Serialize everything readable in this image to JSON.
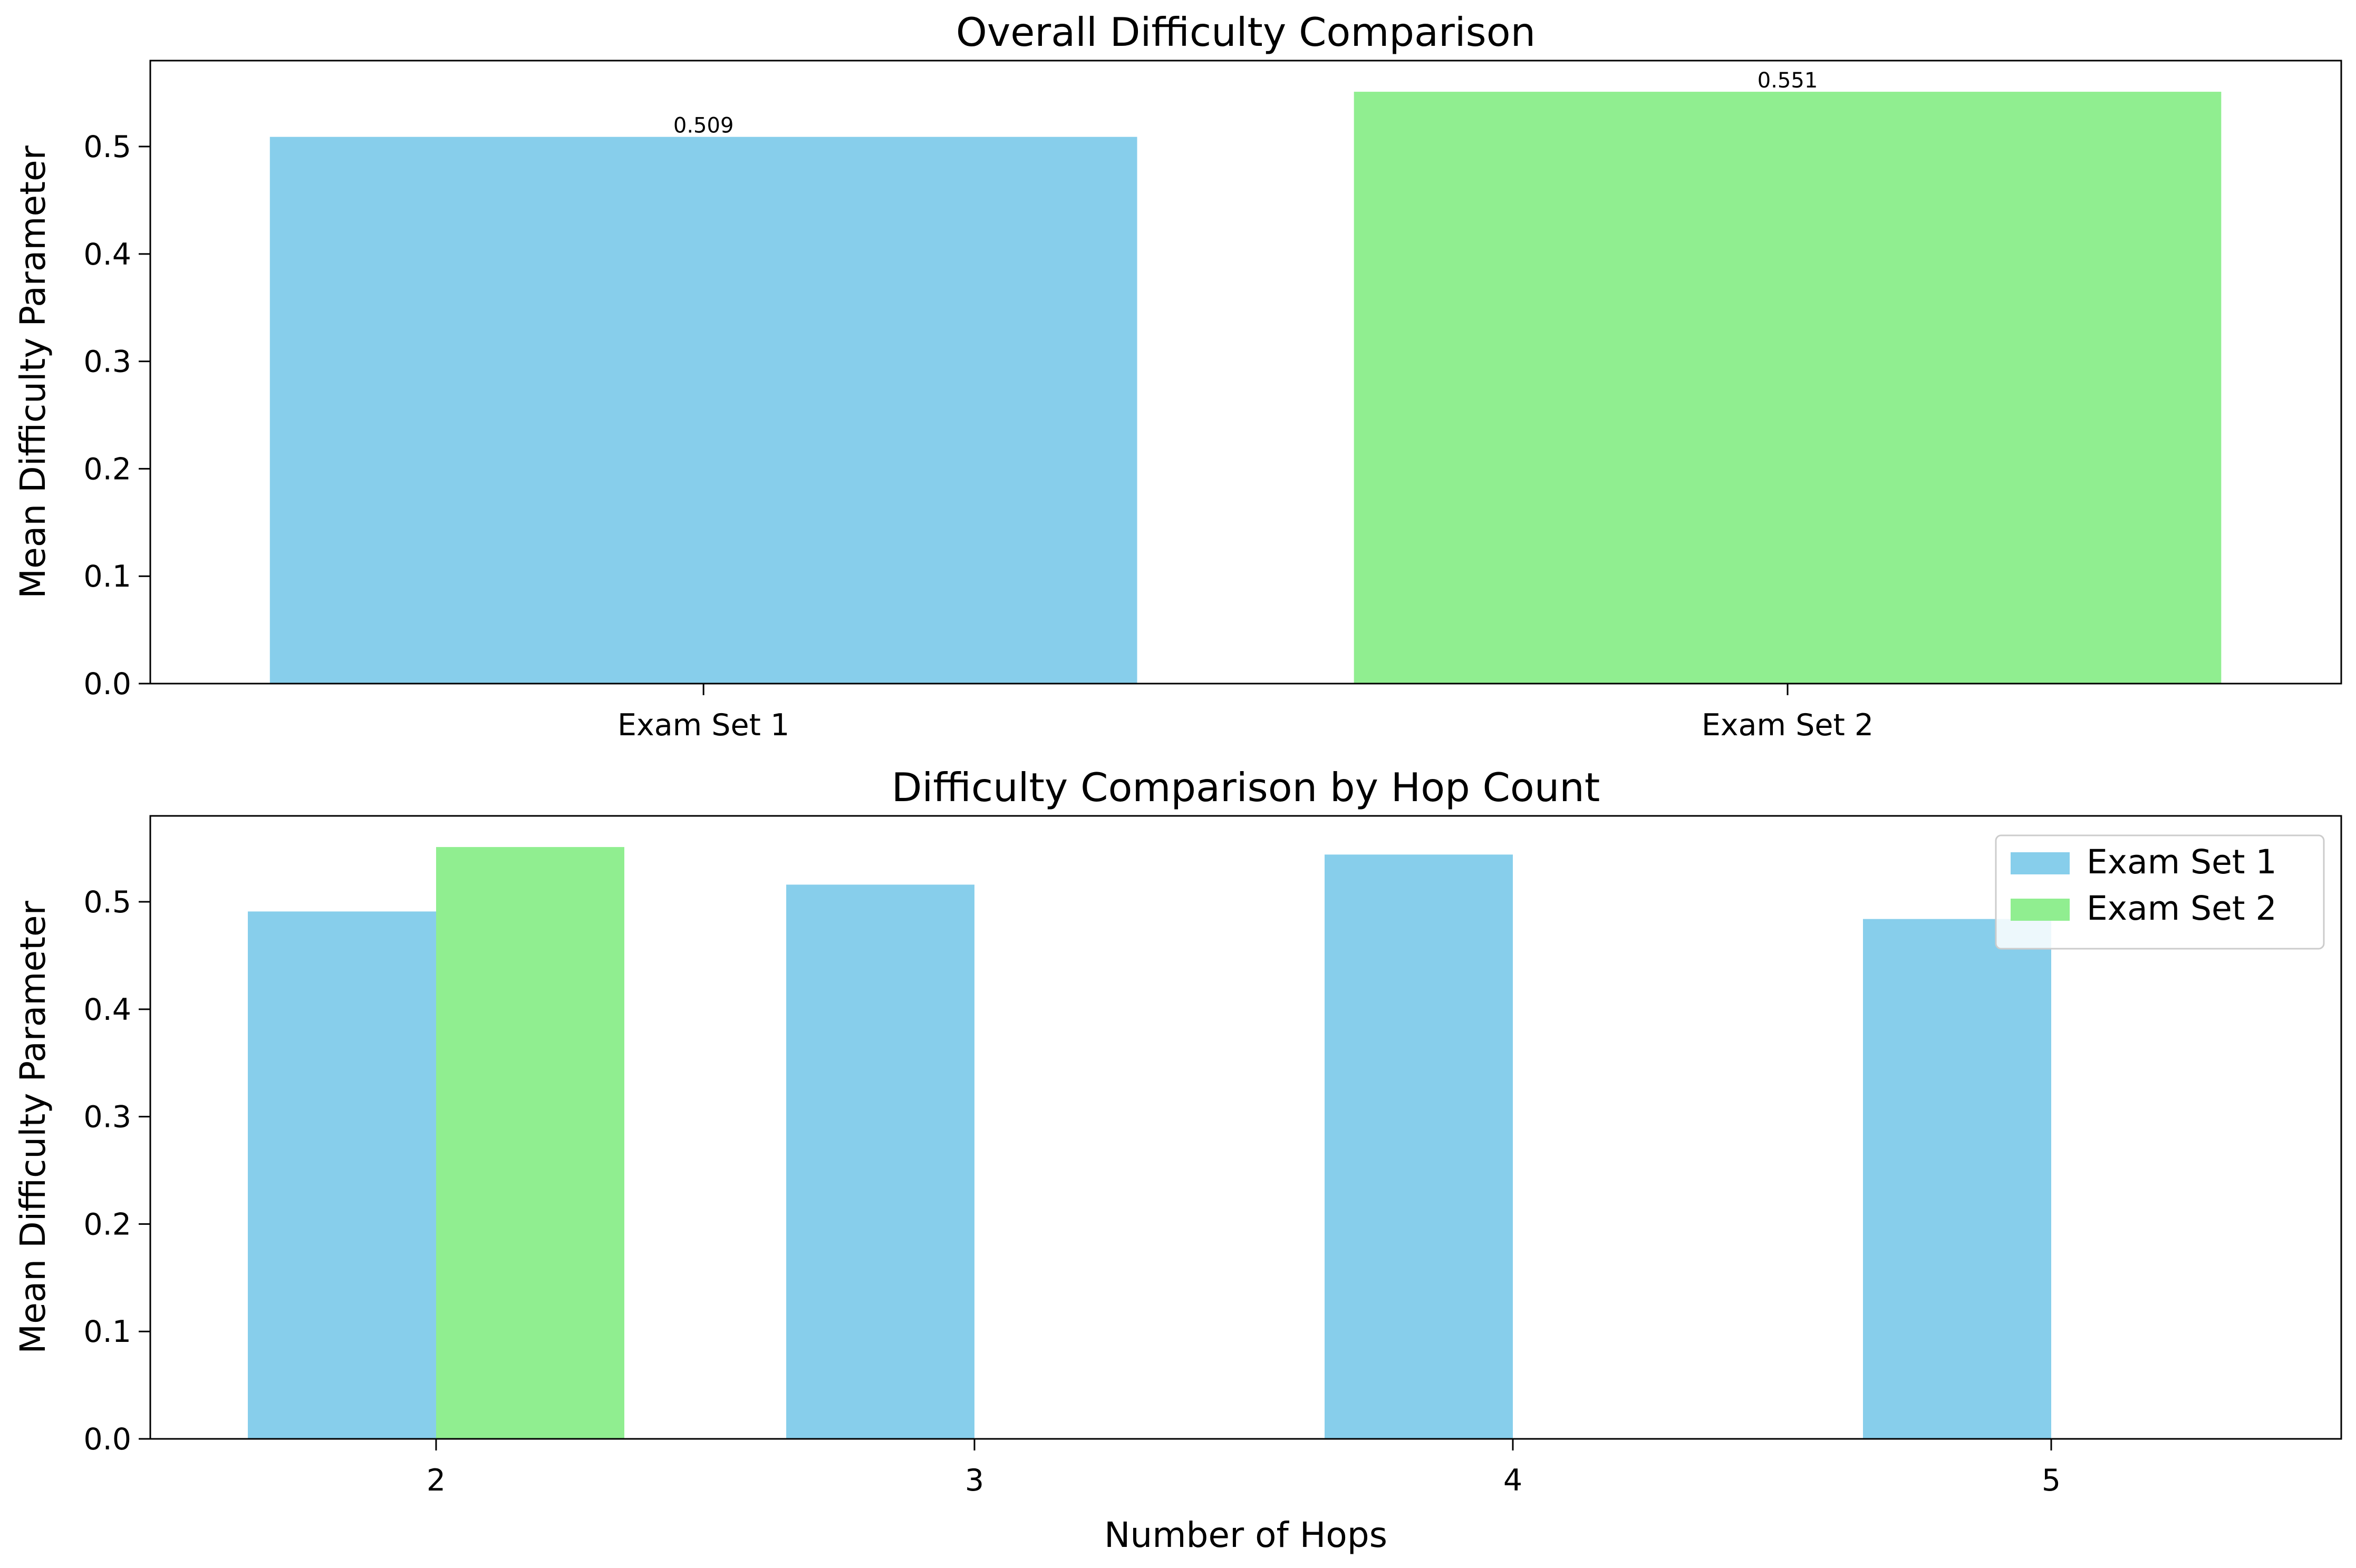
{
  "colors": {
    "exam_set_1": "#87CEEB",
    "exam_set_2": "#90EE90"
  },
  "chart_data": [
    {
      "type": "bar",
      "title": "Overall Difficulty Comparison",
      "xlabel": "",
      "ylabel": "Mean Difficulty Parameter",
      "categories": [
        "Exam Set 1",
        "Exam Set 2"
      ],
      "values": [
        0.509,
        0.551
      ],
      "value_labels": [
        "0.509",
        "0.551"
      ],
      "bar_colors": [
        "#87CEEB",
        "#90EE90"
      ],
      "ylim": [
        0,
        0.58
      ],
      "yticks": [
        "0.0",
        "0.1",
        "0.2",
        "0.3",
        "0.4",
        "0.5"
      ],
      "grid": false,
      "legend": "none"
    },
    {
      "type": "bar",
      "title": "Difficulty Comparison by Hop Count",
      "xlabel": "Number of Hops",
      "ylabel": "Mean Difficulty Parameter",
      "categories": [
        "2",
        "3",
        "4",
        "5"
      ],
      "series": [
        {
          "name": "Exam Set 1",
          "color": "#87CEEB",
          "values": [
            0.491,
            0.516,
            0.544,
            0.484
          ]
        },
        {
          "name": "Exam Set 2",
          "color": "#90EE90",
          "values": [
            0.551,
            null,
            null,
            null
          ]
        }
      ],
      "ylim": [
        0,
        0.58
      ],
      "yticks": [
        "0.0",
        "0.1",
        "0.2",
        "0.3",
        "0.4",
        "0.5"
      ],
      "grid": false,
      "legend": "top-right"
    }
  ]
}
